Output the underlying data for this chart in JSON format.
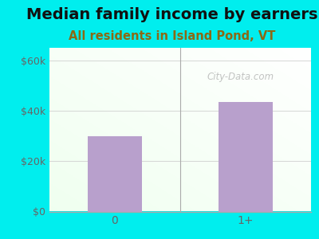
{
  "title": "Median family income by earners",
  "subtitle": "All residents in Island Pond, VT",
  "categories": [
    "0",
    "1+"
  ],
  "values": [
    30000,
    43500
  ],
  "bar_color": "#b8a0cc",
  "ylim": [
    0,
    65000
  ],
  "yticks": [
    0,
    20000,
    40000,
    60000
  ],
  "ytick_labels": [
    "$0",
    "$20k",
    "$40k",
    "$60k"
  ],
  "title_fontsize": 14,
  "subtitle_fontsize": 10.5,
  "title_color": "#111111",
  "subtitle_color": "#8B6914",
  "outer_bg": "#00eeee",
  "watermark_text": "City-Data.com",
  "watermark_color": "#aaaaaa",
  "axis_color": "#aaaaaa",
  "tick_color": "#666666",
  "grid_color": "#cccccc",
  "divider_color": "#aaaaaa"
}
